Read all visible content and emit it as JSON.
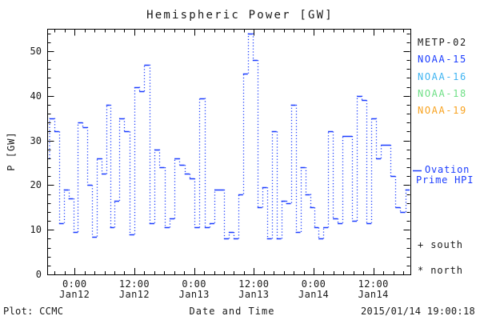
{
  "title": "Hemispheric Power [GW]",
  "y_axis": {
    "label": "P [GW]",
    "tick_labels": [
      "0",
      "10",
      "20",
      "30",
      "40",
      "50"
    ],
    "tick_values": [
      0,
      10,
      20,
      30,
      40,
      50
    ]
  },
  "x_axis": {
    "label": "Date and Time",
    "tick_labels": [
      {
        "time": "0:00",
        "date": "Jan12"
      },
      {
        "time": "12:00",
        "date": "Jan12"
      },
      {
        "time": "0:00",
        "date": "Jan13"
      },
      {
        "time": "12:00",
        "date": "Jan13"
      },
      {
        "time": "0:00",
        "date": "Jan14"
      },
      {
        "time": "12:00",
        "date": "Jan14"
      }
    ]
  },
  "legend": {
    "satellites": [
      {
        "label": "METP-02",
        "color": "#1a1a1a"
      },
      {
        "label": "NOAA-15",
        "color": "#1a3cff"
      },
      {
        "label": "NOAA-16",
        "color": "#3eb4f2"
      },
      {
        "label": "NOAA-18",
        "color": "#6ddf85"
      },
      {
        "label": "NOAA-19",
        "color": "#f8a21e"
      }
    ],
    "line_series": {
      "marker": "—",
      "label_line1": "Ovation",
      "label_line2": "Prime HPI",
      "color": "#1a3cff"
    },
    "south_label": "+ south",
    "north_label": "* north"
  },
  "footer": {
    "left": "Plot: CCMC",
    "timestamp": "2015/01/14 19:00:18"
  },
  "chart_data": {
    "type": "line",
    "style": "step-histogram with dash markers, dotted connectors",
    "series_name": "Ovation Prime HPI",
    "color": "#1a3cff",
    "title": "Hemispheric Power [GW]",
    "xlabel": "Date and Time",
    "ylabel": "P [GW]",
    "ylim": [
      0,
      55
    ],
    "y_major_ticks": [
      0,
      10,
      20,
      30,
      40,
      50
    ],
    "y_minor_step": 2,
    "x_axis_hours_range": [
      0,
      72.93
    ],
    "x_major_tick_hours": [
      5.5,
      17.5,
      29.5,
      41.5,
      53.5,
      65.5
    ],
    "x_minor_step_hours": 2,
    "lead_in_value": 26,
    "points": [
      [
        0.95,
        35
      ],
      [
        1.9,
        32
      ],
      [
        2.85,
        11.5
      ],
      [
        3.8,
        19
      ],
      [
        4.75,
        17
      ],
      [
        5.7,
        9.5
      ],
      [
        6.65,
        34
      ],
      [
        7.6,
        33
      ],
      [
        8.55,
        20
      ],
      [
        9.5,
        8.5
      ],
      [
        10.45,
        26
      ],
      [
        11.4,
        22.5
      ],
      [
        12.3,
        38
      ],
      [
        12.95,
        10.5
      ],
      [
        13.96,
        16.5
      ],
      [
        14.97,
        35
      ],
      [
        15.98,
        32
      ],
      [
        16.99,
        9
      ],
      [
        18.0,
        42
      ],
      [
        19.0,
        41
      ],
      [
        20.01,
        47
      ],
      [
        21.02,
        11.5
      ],
      [
        22.03,
        28
      ],
      [
        23.04,
        24
      ],
      [
        24.05,
        10.5
      ],
      [
        25.06,
        12.5
      ],
      [
        26.06,
        26
      ],
      [
        27.07,
        24.5
      ],
      [
        28.08,
        22.5
      ],
      [
        29.09,
        21.5
      ],
      [
        30.1,
        10.5
      ],
      [
        31.1,
        39.5
      ],
      [
        32.13,
        10.5
      ],
      [
        33.09,
        11.5
      ],
      [
        34.05,
        19
      ],
      [
        35.01,
        19
      ],
      [
        35.97,
        8
      ],
      [
        36.93,
        9.5
      ],
      [
        37.89,
        8
      ],
      [
        38.85,
        18
      ],
      [
        39.81,
        45
      ],
      [
        40.77,
        54
      ],
      [
        41.73,
        48
      ],
      [
        42.69,
        15
      ],
      [
        43.65,
        19.5
      ],
      [
        44.61,
        8
      ],
      [
        45.57,
        32
      ],
      [
        46.53,
        8
      ],
      [
        47.49,
        16.5
      ],
      [
        48.45,
        16
      ],
      [
        49.41,
        38
      ],
      [
        50.37,
        9.5
      ],
      [
        51.33,
        24
      ],
      [
        52.29,
        18
      ],
      [
        53.25,
        15
      ],
      [
        53.98,
        10.5
      ],
      [
        54.95,
        8
      ],
      [
        55.91,
        10.5
      ],
      [
        56.88,
        32
      ],
      [
        57.85,
        12.5
      ],
      [
        58.81,
        11.5
      ],
      [
        59.78,
        31
      ],
      [
        60.75,
        31
      ],
      [
        61.71,
        12
      ],
      [
        62.68,
        40
      ],
      [
        63.65,
        39
      ],
      [
        64.61,
        11.5
      ],
      [
        65.58,
        35
      ],
      [
        66.54,
        26
      ],
      [
        67.51,
        29
      ],
      [
        68.48,
        29
      ],
      [
        69.44,
        22
      ],
      [
        70.41,
        15
      ],
      [
        71.37,
        14
      ],
      [
        72.45,
        19
      ]
    ]
  }
}
